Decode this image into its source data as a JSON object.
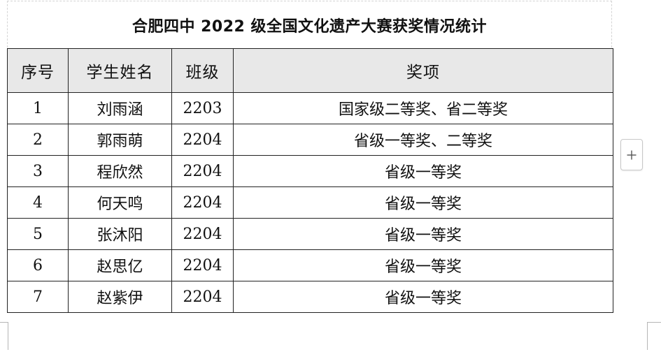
{
  "title": "合肥四中 2022 级全国文化遗产大赛获奖情况统计",
  "table": {
    "headers": {
      "number": "序号",
      "name": "学生姓名",
      "class": "班级",
      "award": "奖项"
    },
    "rows": [
      {
        "number": "1",
        "name": "刘雨涵",
        "class": "2203",
        "award": "国家级二等奖、省二等奖"
      },
      {
        "number": "2",
        "name": "郭雨萌",
        "class": "2204",
        "award": "省级一等奖、二等奖"
      },
      {
        "number": "3",
        "name": "程欣然",
        "class": "2204",
        "award": "省级一等奖"
      },
      {
        "number": "4",
        "name": "何天鸣",
        "class": "2204",
        "award": "省级一等奖"
      },
      {
        "number": "5",
        "name": "张沐阳",
        "class": "2204",
        "award": "省级一等奖"
      },
      {
        "number": "6",
        "name": "赵思亿",
        "class": "2204",
        "award": "省级一等奖"
      },
      {
        "number": "7",
        "name": "赵紫伊",
        "class": "2204",
        "award": "省级一等奖"
      }
    ]
  },
  "controls": {
    "add_row_icon": "plus-icon"
  },
  "colors": {
    "header_background": "#e8e8e8",
    "border": "#222222",
    "text": "#111111"
  }
}
